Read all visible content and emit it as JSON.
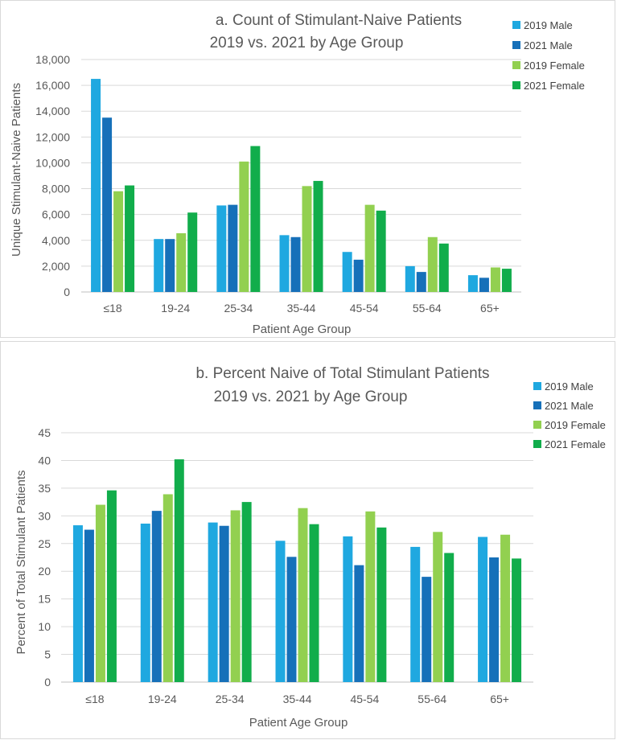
{
  "chart_data": [
    {
      "id": "a",
      "type": "bar",
      "title_line1": "a. Count of Stimulant-Naive Patients",
      "title_line2": "2019 vs. 2021 by Age Group",
      "xlabel": "Patient Age Group",
      "ylabel": "Unique Stimulant-Naive Patients",
      "categories": [
        "≤18",
        "19-24",
        "25-34",
        "35-44",
        "45-54",
        "55-64",
        "65+"
      ],
      "ylim": [
        0,
        18000
      ],
      "yticks": [
        0,
        2000,
        4000,
        6000,
        8000,
        10000,
        12000,
        14000,
        16000,
        18000
      ],
      "ytick_labels": [
        "0",
        "2,000",
        "4,000",
        "6,000",
        "8,000",
        "10,000",
        "12,000",
        "14,000",
        "16,000",
        "18,000"
      ],
      "grid": true,
      "legend_position": "top-right",
      "series": [
        {
          "name": "2019 Male",
          "color": "#1fa8e0",
          "values": [
            16500,
            4100,
            6700,
            4400,
            3100,
            2000,
            1300
          ]
        },
        {
          "name": "2021 Male",
          "color": "#1670b9",
          "values": [
            13500,
            4100,
            6750,
            4250,
            2500,
            1550,
            1100
          ]
        },
        {
          "name": "2019 Female",
          "color": "#92d050",
          "values": [
            7800,
            4550,
            10100,
            8200,
            6750,
            4250,
            1900
          ]
        },
        {
          "name": "2021 Female",
          "color": "#11ad4b",
          "values": [
            8250,
            6150,
            11300,
            8600,
            6300,
            3750,
            1800
          ]
        }
      ]
    },
    {
      "id": "b",
      "type": "bar",
      "title_line1": "b. Percent Naive of Total Stimulant Patients",
      "title_line2": "2019 vs. 2021 by Age Group",
      "xlabel": "Patient Age Group",
      "ylabel": "Percent of Total Stimulant Patients",
      "categories": [
        "≤18",
        "19-24",
        "25-34",
        "35-44",
        "45-54",
        "55-64",
        "65+"
      ],
      "ylim": [
        0,
        45
      ],
      "yticks": [
        0,
        5,
        10,
        15,
        20,
        25,
        30,
        35,
        40,
        45
      ],
      "ytick_labels": [
        "0",
        "5",
        "10",
        "15",
        "20",
        "25",
        "30",
        "35",
        "40",
        "45"
      ],
      "grid": true,
      "legend_position": "top-right",
      "series": [
        {
          "name": "2019 Male",
          "color": "#1fa8e0",
          "values": [
            28.3,
            28.6,
            28.8,
            25.5,
            26.3,
            24.4,
            26.2
          ]
        },
        {
          "name": "2021 Male",
          "color": "#1670b9",
          "values": [
            27.5,
            30.9,
            28.2,
            22.6,
            21.1,
            19.0,
            22.5
          ]
        },
        {
          "name": "2019 Female",
          "color": "#92d050",
          "values": [
            32.0,
            33.9,
            31.0,
            31.4,
            30.8,
            27.1,
            26.6
          ]
        },
        {
          "name": "2021 Female",
          "color": "#11ad4b",
          "values": [
            34.6,
            40.2,
            32.5,
            28.5,
            27.9,
            23.3,
            22.3
          ]
        }
      ]
    }
  ]
}
